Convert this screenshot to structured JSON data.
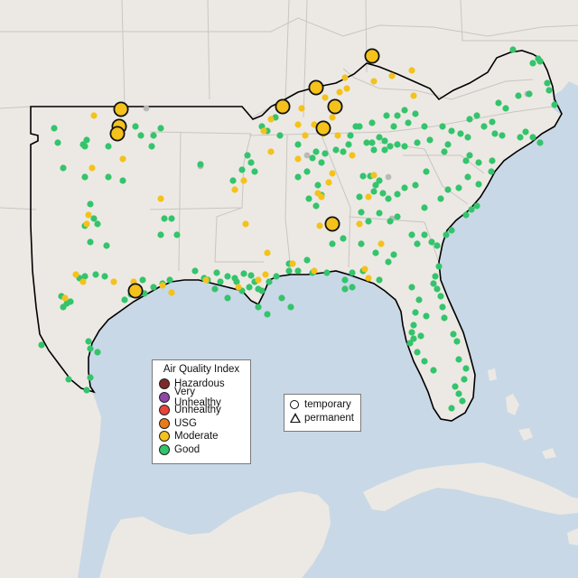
{
  "legend": {
    "title": "Air Quality Index",
    "categories": [
      {
        "label": "Hazardous",
        "color": "#7e2b2b"
      },
      {
        "label": "Very Unhealthy",
        "color": "#8f47a6"
      },
      {
        "label": "Unhealthy",
        "color": "#e8443a"
      },
      {
        "label": "USG",
        "color": "#e97b1b"
      },
      {
        "label": "Moderate",
        "color": "#f4c21b"
      },
      {
        "label": "Good",
        "color": "#34c46c"
      }
    ]
  },
  "monitor_type_legend": {
    "temporary": "temporary",
    "permanent": "permanent"
  },
  "colors": {
    "water": "#c9d8e6",
    "land": "#ece9e4",
    "no_data": "#b9b9b9",
    "state_border": "#c9c5c0",
    "outline": "#000000"
  },
  "stations_summary": {
    "good_count_approx": 290,
    "moderate_count_approx": 55,
    "large_moderate_markers": 10
  }
}
